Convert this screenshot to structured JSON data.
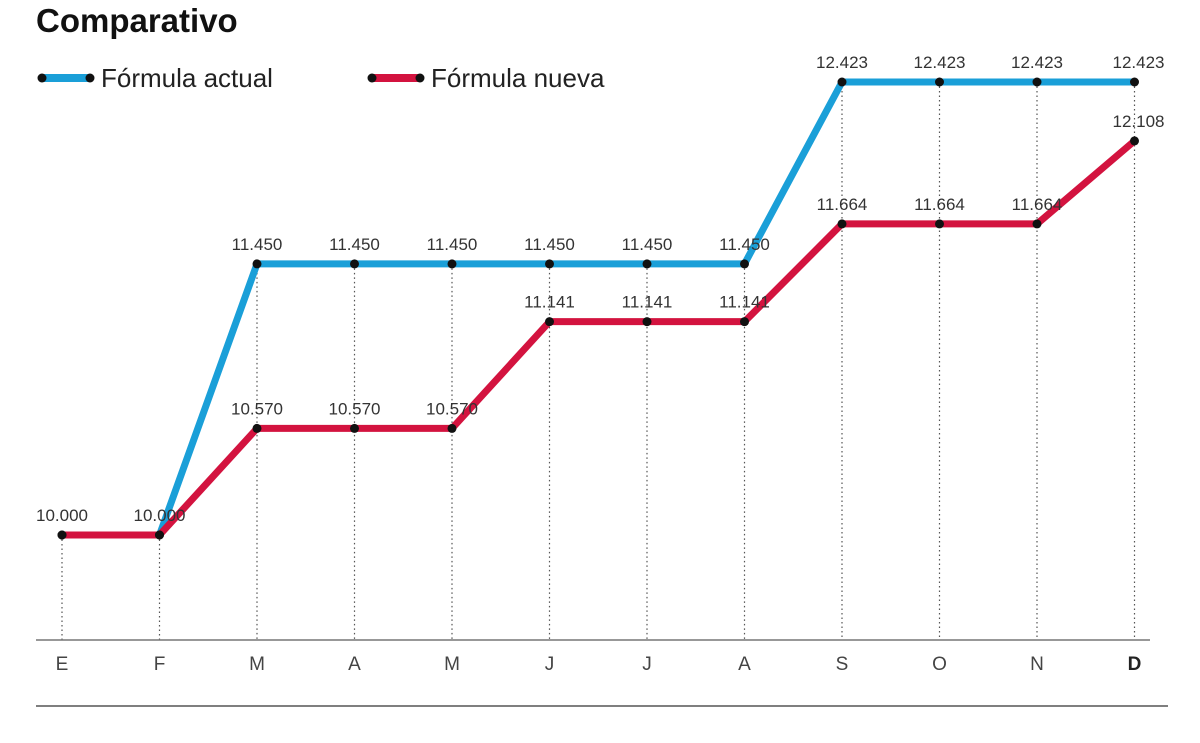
{
  "chart_data": {
    "type": "line",
    "title": "Comparativo",
    "categories": [
      "E",
      "F",
      "M",
      "A",
      "M",
      "J",
      "J",
      "A",
      "S",
      "O",
      "N",
      "D"
    ],
    "series": [
      {
        "name": "Fórmula actual",
        "color": "#1a9fd8",
        "values": [
          10000,
          10000,
          11450,
          11450,
          11450,
          11450,
          11450,
          11450,
          12423,
          12423,
          12423,
          12423
        ],
        "labels": [
          "10.000",
          "10.000",
          "11.450",
          "11.450",
          "11.450",
          "11.450",
          "11.450",
          "11.450",
          "12.423",
          "12.423",
          "12.423",
          "12.423"
        ]
      },
      {
        "name": "Fórmula nueva",
        "color": "#d3133f",
        "values": [
          10000,
          10000,
          10570,
          10570,
          10570,
          11141,
          11141,
          11141,
          11664,
          11664,
          11664,
          12108
        ],
        "labels": [
          "",
          "",
          "10.570",
          "10.570",
          "10.570",
          "11.141",
          "11.141",
          "11.141",
          "11.664",
          "11.664",
          "11.664",
          "12.108"
        ]
      }
    ],
    "legend_position": "top-left",
    "grid": "vertical dotted",
    "bold_last_tick": true
  }
}
